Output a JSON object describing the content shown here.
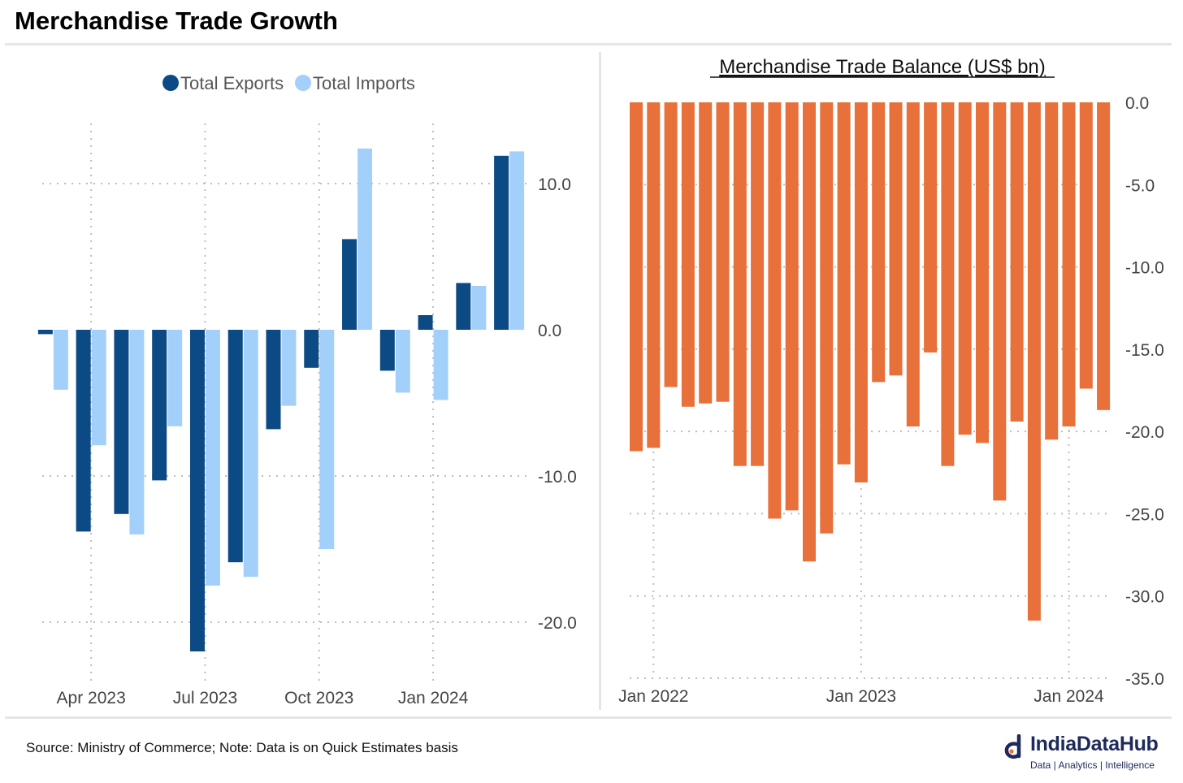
{
  "page": {
    "title": "Merchandise Trade Growth",
    "source_note": "Source: Ministry of Commerce; Note: Data is on Quick Estimates basis"
  },
  "brand": {
    "name": "IndiaDataHub",
    "tagline": "Data | Analytics | Intelligence",
    "icon": "indiadatahub-logo-icon"
  },
  "chart_data": [
    {
      "type": "bar",
      "title": "",
      "legend_position": "top",
      "y_axis_position": "right",
      "ylim": [
        -24,
        16
      ],
      "y_ticks": [
        10,
        0,
        -10,
        -20
      ],
      "y_tick_labels": [
        "10.0",
        "0.0",
        "-10.0",
        "-20.0"
      ],
      "x_ticks": [
        "Apr 2023",
        "Jul 2023",
        "Oct 2023",
        "Jan 2024"
      ],
      "x_tick_positions": [
        1,
        4,
        7,
        10
      ],
      "grid": true,
      "categories": [
        "Mar 2023",
        "Apr 2023",
        "May 2023",
        "Jun 2023",
        "Jul 2023",
        "Aug 2023",
        "Sep 2023",
        "Oct 2023",
        "Nov 2023",
        "Dec 2023",
        "Jan 2024",
        "Feb 2024",
        "Mar 2024"
      ],
      "series": [
        {
          "name": "Total Exports",
          "color": "#0b4a84",
          "values": [
            -0.3,
            -13.8,
            -12.6,
            -10.3,
            -22.0,
            -15.9,
            -6.8,
            -2.6,
            6.2,
            -2.8,
            1.0,
            3.2,
            11.9
          ]
        },
        {
          "name": "Total Imports",
          "color": "#a3d0fb",
          "values": [
            -4.1,
            -7.9,
            -14.0,
            -6.6,
            -17.5,
            -16.9,
            -5.2,
            -15.0,
            12.4,
            -4.3,
            -4.8,
            3.0,
            12.2
          ]
        }
      ]
    },
    {
      "type": "bar",
      "title": "Merchandise Trade Balance (US$ bn)",
      "y_axis_position": "right",
      "ylim": [
        -35,
        0
      ],
      "y_ticks": [
        0,
        -5,
        -10,
        -15,
        -20,
        -25,
        -30,
        -35
      ],
      "y_tick_labels": [
        "0.0",
        "-5.0",
        "-10.0",
        "-15.0",
        "-20.0",
        "-25.0",
        "-30.0",
        "-35.0"
      ],
      "x_ticks": [
        "Jan 2022",
        "Jan 2023",
        "Jan 2024"
      ],
      "x_tick_positions": [
        1,
        13,
        25
      ],
      "grid": true,
      "color": "#e8703a",
      "categories": [
        "Dec 2021",
        "Jan 2022",
        "Feb 2022",
        "Mar 2022",
        "Apr 2022",
        "May 2022",
        "Jun 2022",
        "Jul 2022",
        "Aug 2022",
        "Sep 2022",
        "Oct 2022",
        "Nov 2022",
        "Dec 2022",
        "Jan 2023",
        "Feb 2023",
        "Mar 2023",
        "Apr 2023",
        "May 2023",
        "Jun 2023",
        "Jul 2023",
        "Aug 2023",
        "Sep 2023",
        "Oct 2023",
        "Nov 2023",
        "Dec 2023",
        "Jan 2024",
        "Feb 2024",
        "Mar 2024"
      ],
      "values": [
        -21.2,
        -21.0,
        -17.3,
        -18.5,
        -18.3,
        -18.2,
        -22.1,
        -22.1,
        -25.3,
        -24.8,
        -27.9,
        -26.2,
        -22.0,
        -23.1,
        -17.0,
        -16.6,
        -19.7,
        -15.2,
        -22.1,
        -20.2,
        -20.7,
        -24.2,
        -19.4,
        -31.5,
        -20.5,
        -19.7,
        -17.4,
        -18.7
      ]
    }
  ]
}
